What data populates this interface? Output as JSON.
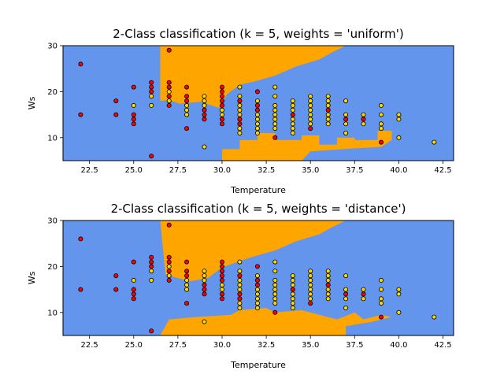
{
  "colors": {
    "class_a_region": "#FFA500",
    "class_b_region": "#6495ED",
    "class_a_point": "#FF0000",
    "class_b_point": "#FFD700",
    "point_edge": "#000000"
  },
  "chart_data": [
    {
      "type": "scatter",
      "title": "2-Class classification (k = 5, weights = 'uniform')",
      "xlabel": "Temperature",
      "ylabel": "Ws",
      "xlim": [
        21.0,
        43.1
      ],
      "ylim": [
        5,
        30
      ],
      "xticks": [
        22.5,
        25.0,
        27.5,
        30.0,
        32.5,
        35.0,
        37.5,
        40.0,
        42.5
      ],
      "xtick_labels": [
        "22.5",
        "25.0",
        "27.5",
        "30.0",
        "32.5",
        "35.0",
        "37.5",
        "40.0",
        "42.5"
      ],
      "yticks": [
        10,
        20,
        30
      ],
      "ytick_labels": [
        "10",
        "20",
        "30"
      ],
      "grid": false,
      "legend": "none",
      "background": "decision regions (orange = class A, blue = class B)"
    },
    {
      "type": "scatter",
      "title": "2-Class classification (k = 5, weights = 'distance')",
      "xlabel": "Temperature",
      "ylabel": "Ws",
      "xlim": [
        21.0,
        43.1
      ],
      "ylim": [
        5,
        30
      ],
      "xticks": [
        22.5,
        25.0,
        27.5,
        30.0,
        32.5,
        35.0,
        37.5,
        40.0,
        42.5
      ],
      "xtick_labels": [
        "22.5",
        "25.0",
        "27.5",
        "30.0",
        "32.5",
        "35.0",
        "37.5",
        "40.0",
        "42.5"
      ],
      "yticks": [
        10,
        20,
        30
      ],
      "ytick_labels": [
        "10",
        "20",
        "30"
      ],
      "grid": false,
      "legend": "none",
      "background": "decision regions (orange = class A, blue = class B)"
    }
  ],
  "points_class_a": [
    [
      22,
      26
    ],
    [
      22,
      15
    ],
    [
      24,
      18
    ],
    [
      24,
      15
    ],
    [
      25,
      21
    ],
    [
      25,
      15
    ],
    [
      25,
      14
    ],
    [
      25,
      13
    ],
    [
      26,
      22
    ],
    [
      26,
      21
    ],
    [
      26,
      20
    ],
    [
      26,
      6
    ],
    [
      27,
      29
    ],
    [
      27,
      22
    ],
    [
      27,
      21
    ],
    [
      27,
      19
    ],
    [
      27,
      17
    ],
    [
      28,
      21
    ],
    [
      28,
      19
    ],
    [
      28,
      18
    ],
    [
      28,
      12
    ],
    [
      29,
      16
    ],
    [
      29,
      15
    ],
    [
      29,
      14
    ],
    [
      30,
      21
    ],
    [
      30,
      20
    ],
    [
      30,
      19
    ],
    [
      30,
      18
    ],
    [
      30,
      17
    ],
    [
      30,
      14
    ],
    [
      30,
      13
    ],
    [
      31,
      18
    ],
    [
      31,
      14
    ],
    [
      31,
      13
    ],
    [
      32,
      20
    ],
    [
      32,
      17
    ],
    [
      32,
      16
    ],
    [
      33,
      10
    ],
    [
      34,
      15
    ],
    [
      35,
      12
    ],
    [
      36,
      16
    ],
    [
      37,
      14
    ],
    [
      38,
      14
    ],
    [
      39,
      9
    ]
  ],
  "points_class_b": [
    [
      25,
      17
    ],
    [
      26,
      19
    ],
    [
      26,
      17
    ],
    [
      27,
      20
    ],
    [
      27,
      18
    ],
    [
      28,
      17
    ],
    [
      28,
      16
    ],
    [
      28,
      15
    ],
    [
      29,
      19
    ],
    [
      29,
      18
    ],
    [
      29,
      17
    ],
    [
      29,
      8
    ],
    [
      30,
      16
    ],
    [
      30,
      15
    ],
    [
      31,
      21
    ],
    [
      31,
      19
    ],
    [
      31,
      17
    ],
    [
      31,
      16
    ],
    [
      31,
      15
    ],
    [
      31,
      12
    ],
    [
      31,
      11
    ],
    [
      32,
      18
    ],
    [
      32,
      15
    ],
    [
      32,
      14
    ],
    [
      32,
      13
    ],
    [
      32,
      12
    ],
    [
      32,
      11
    ],
    [
      33,
      21
    ],
    [
      33,
      19
    ],
    [
      33,
      17
    ],
    [
      33,
      16
    ],
    [
      33,
      15
    ],
    [
      33,
      14
    ],
    [
      33,
      13
    ],
    [
      33,
      12
    ],
    [
      34,
      18
    ],
    [
      34,
      17
    ],
    [
      34,
      16
    ],
    [
      34,
      14
    ],
    [
      34,
      13
    ],
    [
      34,
      12
    ],
    [
      34,
      11
    ],
    [
      35,
      19
    ],
    [
      35,
      18
    ],
    [
      35,
      17
    ],
    [
      35,
      16
    ],
    [
      35,
      15
    ],
    [
      35,
      14
    ],
    [
      35,
      13
    ],
    [
      36,
      19
    ],
    [
      36,
      18
    ],
    [
      36,
      17
    ],
    [
      36,
      15
    ],
    [
      36,
      14
    ],
    [
      36,
      13
    ],
    [
      37,
      18
    ],
    [
      37,
      15
    ],
    [
      37,
      13
    ],
    [
      37,
      11
    ],
    [
      38,
      15
    ],
    [
      38,
      13
    ],
    [
      39,
      17
    ],
    [
      39,
      15
    ],
    [
      39,
      13
    ],
    [
      39,
      12
    ],
    [
      40,
      15
    ],
    [
      40,
      14
    ],
    [
      40,
      10
    ],
    [
      42,
      9
    ]
  ],
  "boundary_uniform": [
    [
      21.0,
      5
    ],
    [
      30.0,
      5
    ],
    [
      30.0,
      7.5
    ],
    [
      31.0,
      7.5
    ],
    [
      31.0,
      9.5
    ],
    [
      32.0,
      9.5
    ],
    [
      32.0,
      11.0
    ],
    [
      33.0,
      11.0
    ],
    [
      33.0,
      9.5
    ],
    [
      34.5,
      9.5
    ],
    [
      34.5,
      10.5
    ],
    [
      35.5,
      10.5
    ],
    [
      35.5,
      8.5
    ],
    [
      36.5,
      8.5
    ],
    [
      36.5,
      10.0
    ],
    [
      37.5,
      10.0
    ],
    [
      37.5,
      9.5
    ],
    [
      38.8,
      9.5
    ],
    [
      38.8,
      11.5
    ],
    [
      39.6,
      11.5
    ],
    [
      39.6,
      9.5
    ],
    [
      39.0,
      8.0
    ],
    [
      36.8,
      7.5
    ],
    [
      35.0,
      7.0
    ],
    [
      34.5,
      5
    ],
    [
      43.1,
      5
    ],
    [
      43.1,
      30
    ],
    [
      37.0,
      30
    ],
    [
      36.2,
      28.5
    ],
    [
      35.5,
      27.0
    ],
    [
      34.2,
      25.5
    ],
    [
      33.0,
      23.5
    ],
    [
      31.8,
      22.2
    ],
    [
      31.0,
      21.5
    ],
    [
      30.3,
      19.5
    ],
    [
      29.8,
      16.5
    ],
    [
      28.8,
      17.8
    ],
    [
      27.6,
      17.4
    ],
    [
      27.0,
      18.2
    ],
    [
      26.5,
      18.0
    ],
    [
      26.5,
      30
    ],
    [
      21.0,
      30
    ]
  ],
  "boundary_distance": [
    [
      21.0,
      5
    ],
    [
      26.5,
      5
    ],
    [
      27.0,
      8.5
    ],
    [
      28.5,
      9.0
    ],
    [
      30.5,
      9.5
    ],
    [
      31.0,
      10.5
    ],
    [
      32.5,
      11.0
    ],
    [
      33.0,
      10.0
    ],
    [
      34.5,
      10.5
    ],
    [
      35.5,
      9.5
    ],
    [
      36.5,
      8.5
    ],
    [
      37.5,
      10.0
    ],
    [
      38.0,
      8.5
    ],
    [
      39.0,
      9.5
    ],
    [
      39.6,
      9.0
    ],
    [
      38.5,
      8.0
    ],
    [
      37.0,
      7.0
    ],
    [
      37.0,
      5
    ],
    [
      43.1,
      5
    ],
    [
      43.1,
      30
    ],
    [
      37.0,
      30
    ],
    [
      36.2,
      28.5
    ],
    [
      35.5,
      27.0
    ],
    [
      34.2,
      25.5
    ],
    [
      33.0,
      23.5
    ],
    [
      31.8,
      22.2
    ],
    [
      31.0,
      21.2
    ],
    [
      30.0,
      19.8
    ],
    [
      29.2,
      17.5
    ],
    [
      28.2,
      16.8
    ],
    [
      27.4,
      17.6
    ],
    [
      26.8,
      18.3
    ],
    [
      26.5,
      30
    ],
    [
      21.0,
      30
    ]
  ]
}
